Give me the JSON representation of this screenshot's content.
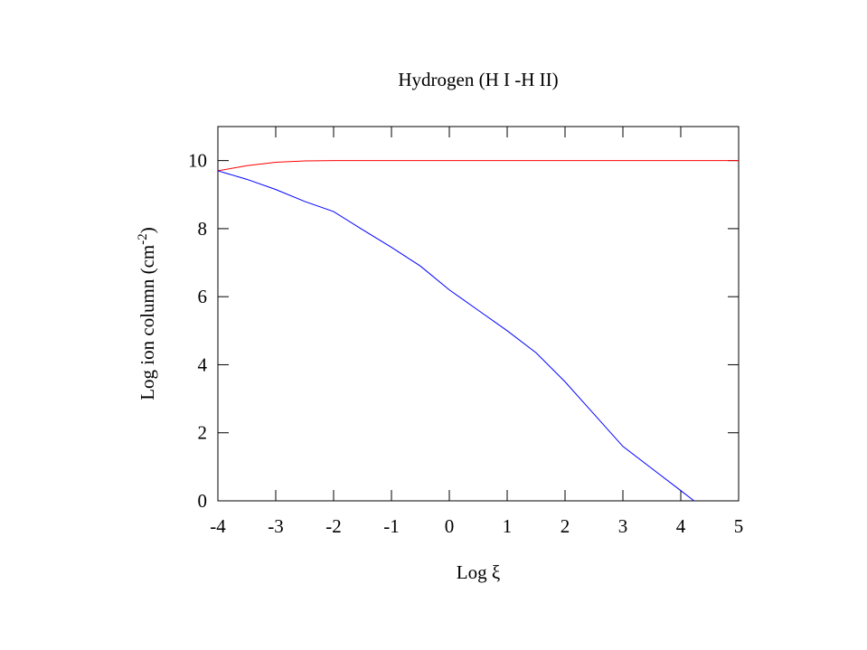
{
  "chart_data": {
    "type": "line",
    "title": "Hydrogen (H I -H II)",
    "xlabel": "Log ξ",
    "ylabel": "Log ion column (cm",
    "ylabel_sup": "-2",
    "ylabel_end": ")",
    "x": [
      -4,
      -3.5,
      -3,
      -2.5,
      -2,
      -1.5,
      -1,
      -0.5,
      0,
      0.5,
      1,
      1.5,
      2,
      2.5,
      3,
      3.5,
      4,
      4.23,
      4.5,
      5
    ],
    "series": [
      {
        "color": "#ff0000",
        "values": [
          9.7,
          9.85,
          9.95,
          9.99,
          10,
          10,
          10,
          10,
          10,
          10,
          10,
          10,
          10,
          10,
          10,
          10,
          10,
          10,
          10,
          10
        ]
      },
      {
        "color": "#0000ff",
        "values": [
          9.7,
          9.45,
          9.15,
          8.8,
          8.5,
          7.97,
          7.45,
          6.9,
          6.2,
          5.6,
          5.0,
          4.35,
          3.5,
          2.55,
          1.6,
          0.95,
          0.3,
          0,
          null,
          null
        ]
      }
    ],
    "xlim": [
      -4,
      5
    ],
    "ylim": [
      0,
      11
    ],
    "xticks": [
      -4,
      -3,
      -2,
      -1,
      0,
      1,
      2,
      3,
      4,
      5
    ],
    "yticks": [
      0,
      2,
      4,
      6,
      8,
      10
    ]
  }
}
